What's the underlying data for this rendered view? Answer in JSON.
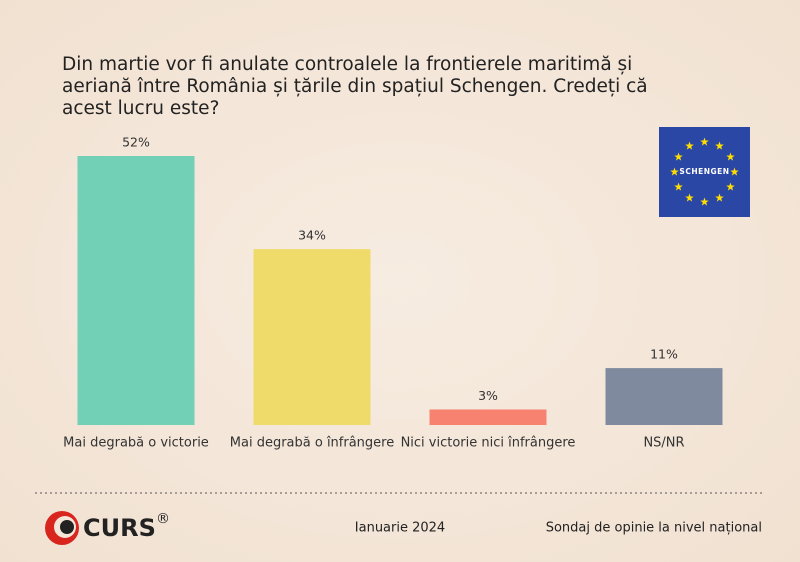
{
  "chart_data": {
    "type": "bar",
    "title": "Din martie vor fi anulate controalele la frontierele maritimă și aeriană între România și țările din spațiul Schengen. Credeți că acest lucru este?",
    "categories": [
      "Mai degrabă o victorie",
      "Mai degrabă o înfrângere",
      "Nici victorie nici înfrângere",
      "NS/NR"
    ],
    "values": [
      52,
      34,
      3,
      11
    ],
    "value_labels": [
      "52%",
      "34%",
      "3%",
      "11%"
    ],
    "colors": [
      "#72d0b6",
      "#efdb6a",
      "#f7826f",
      "#7f8a9e"
    ]
  },
  "badge": {
    "label": "SCHENGEN"
  },
  "footer": {
    "logo": "CURS",
    "logo_mark": "®",
    "date": "Ianuarie 2024",
    "source": "Sondaj de opinie la nivel național"
  }
}
